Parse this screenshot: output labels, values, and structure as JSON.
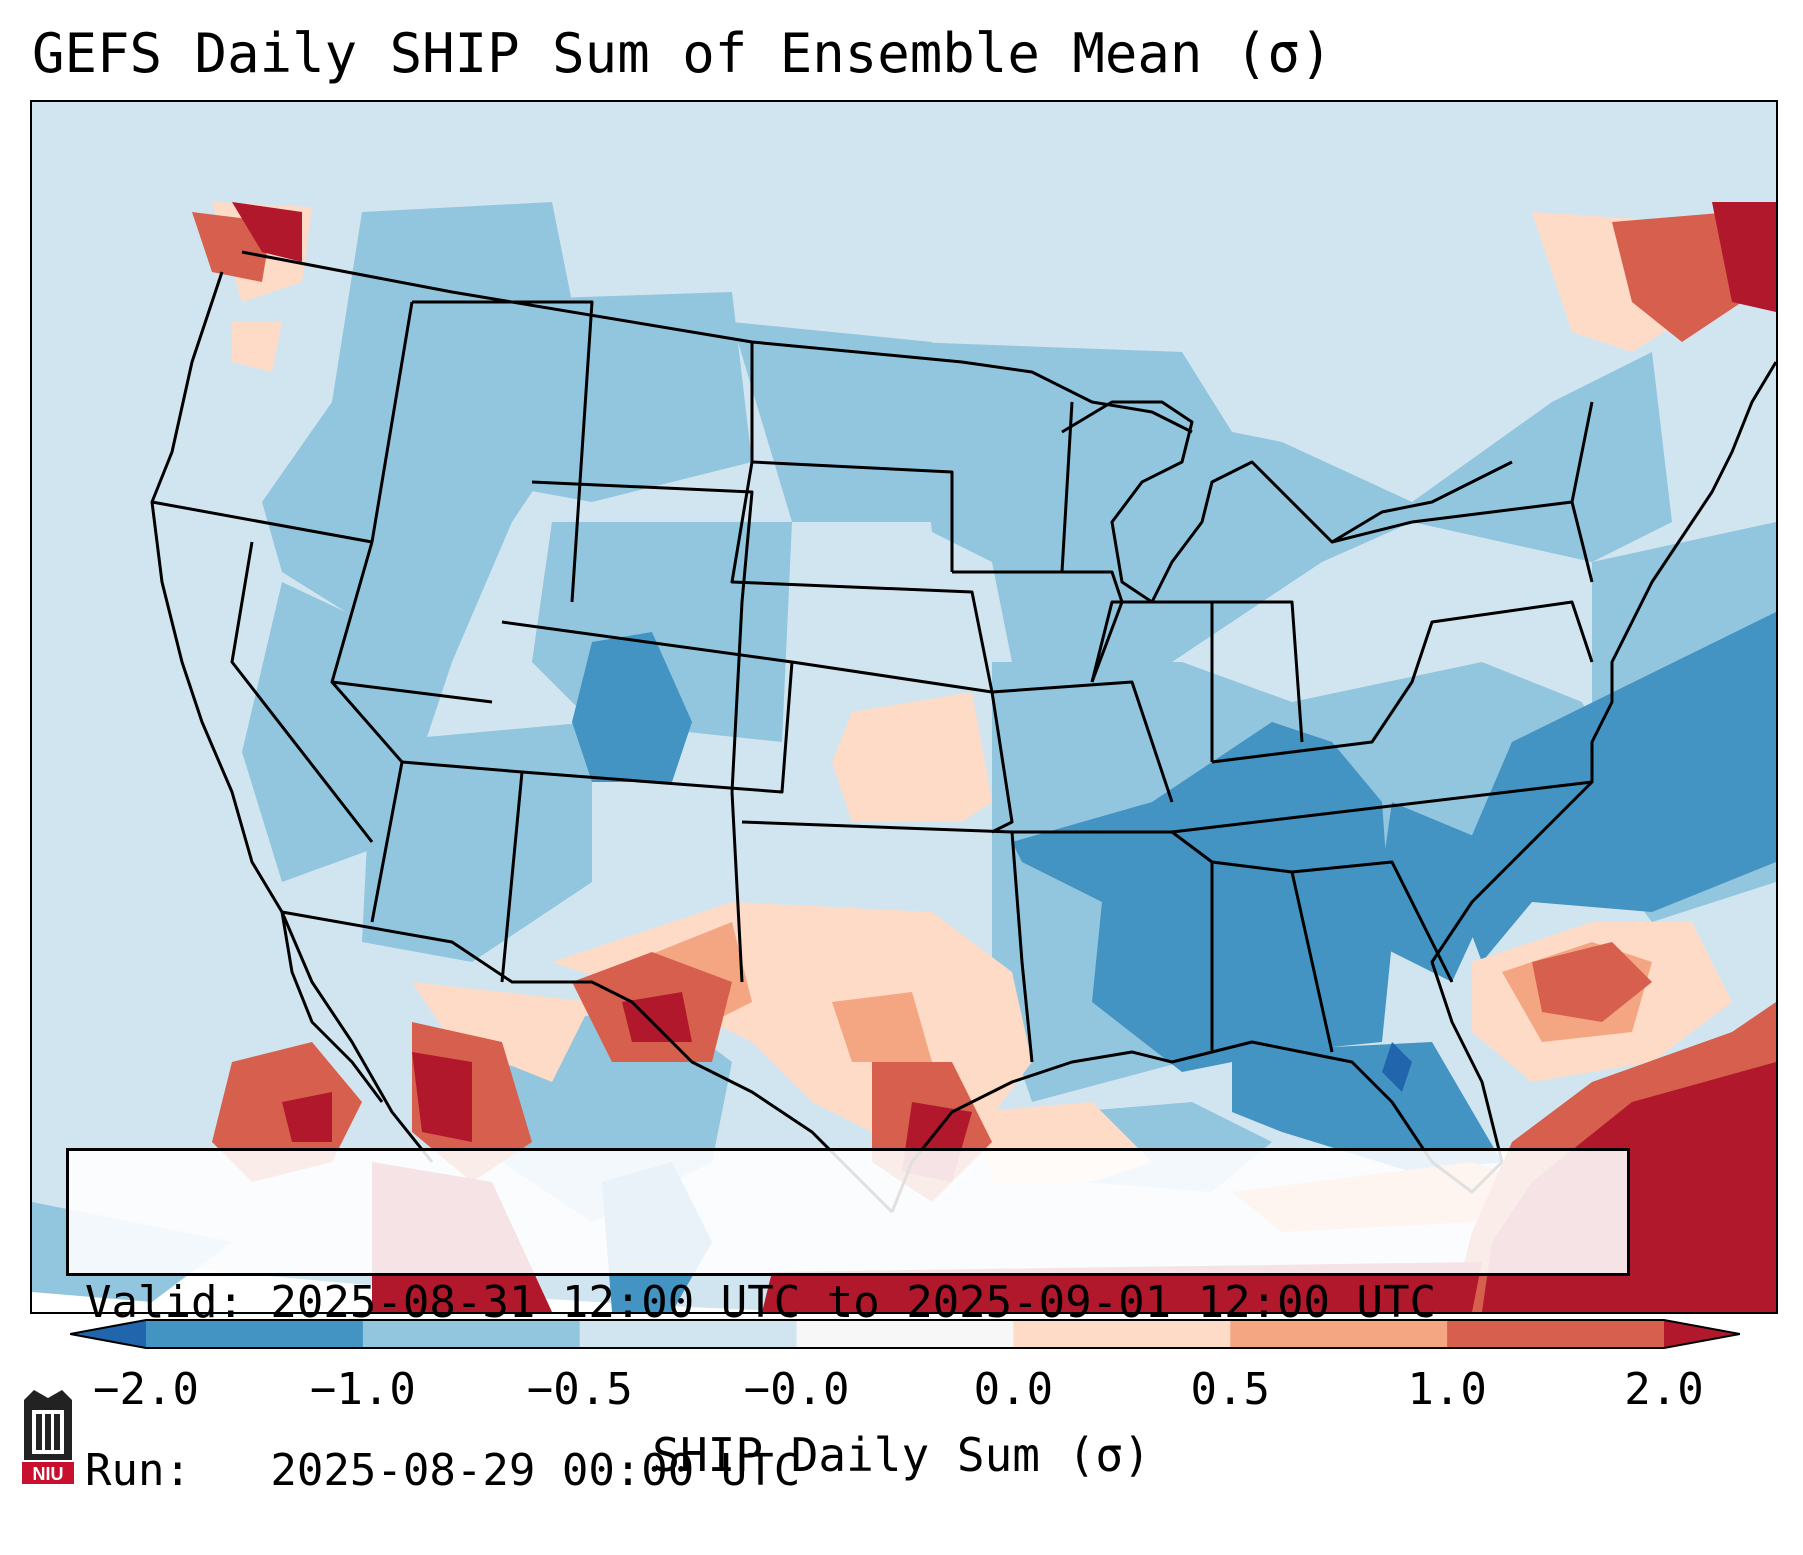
{
  "title": "GEFS Daily SHIP Sum of Ensemble Mean (σ)",
  "info": {
    "valid_line": "Valid: 2025-08-31 12:00 UTC to 2025-09-01 12:00 UTC",
    "run_line": "Run:   2025-08-29 00:00 UTC"
  },
  "colorbar": {
    "label": "SHIP Daily Sum (σ)",
    "ticks": [
      "−2.0",
      "−1.0",
      "−0.5",
      "−0.0",
      "0.0",
      "0.5",
      "1.0",
      "2.0"
    ],
    "bins": [
      {
        "range": "< -2.0",
        "color": "#2166ac"
      },
      {
        "range": "-2.0 to -1.0",
        "color": "#4393c3"
      },
      {
        "range": "-1.0 to -0.5",
        "color": "#92c5de"
      },
      {
        "range": "-0.5 to -0.0",
        "color": "#d1e5f0"
      },
      {
        "range": "-0.0 to 0.0",
        "color": "#f7f7f7"
      },
      {
        "range": "0.0 to 0.5",
        "color": "#fddbc7"
      },
      {
        "range": "0.5 to 1.0",
        "color": "#f4a582"
      },
      {
        "range": "1.0 to 2.0",
        "color": "#d6604d"
      },
      {
        "range": "> 2.0",
        "color": "#b2182b"
      }
    ]
  },
  "map": {
    "region": "Contiguous United States",
    "field": "SHIP daily sum anomaly (σ)"
  },
  "logo": {
    "text": "NIU",
    "color": "#c8102e"
  }
}
